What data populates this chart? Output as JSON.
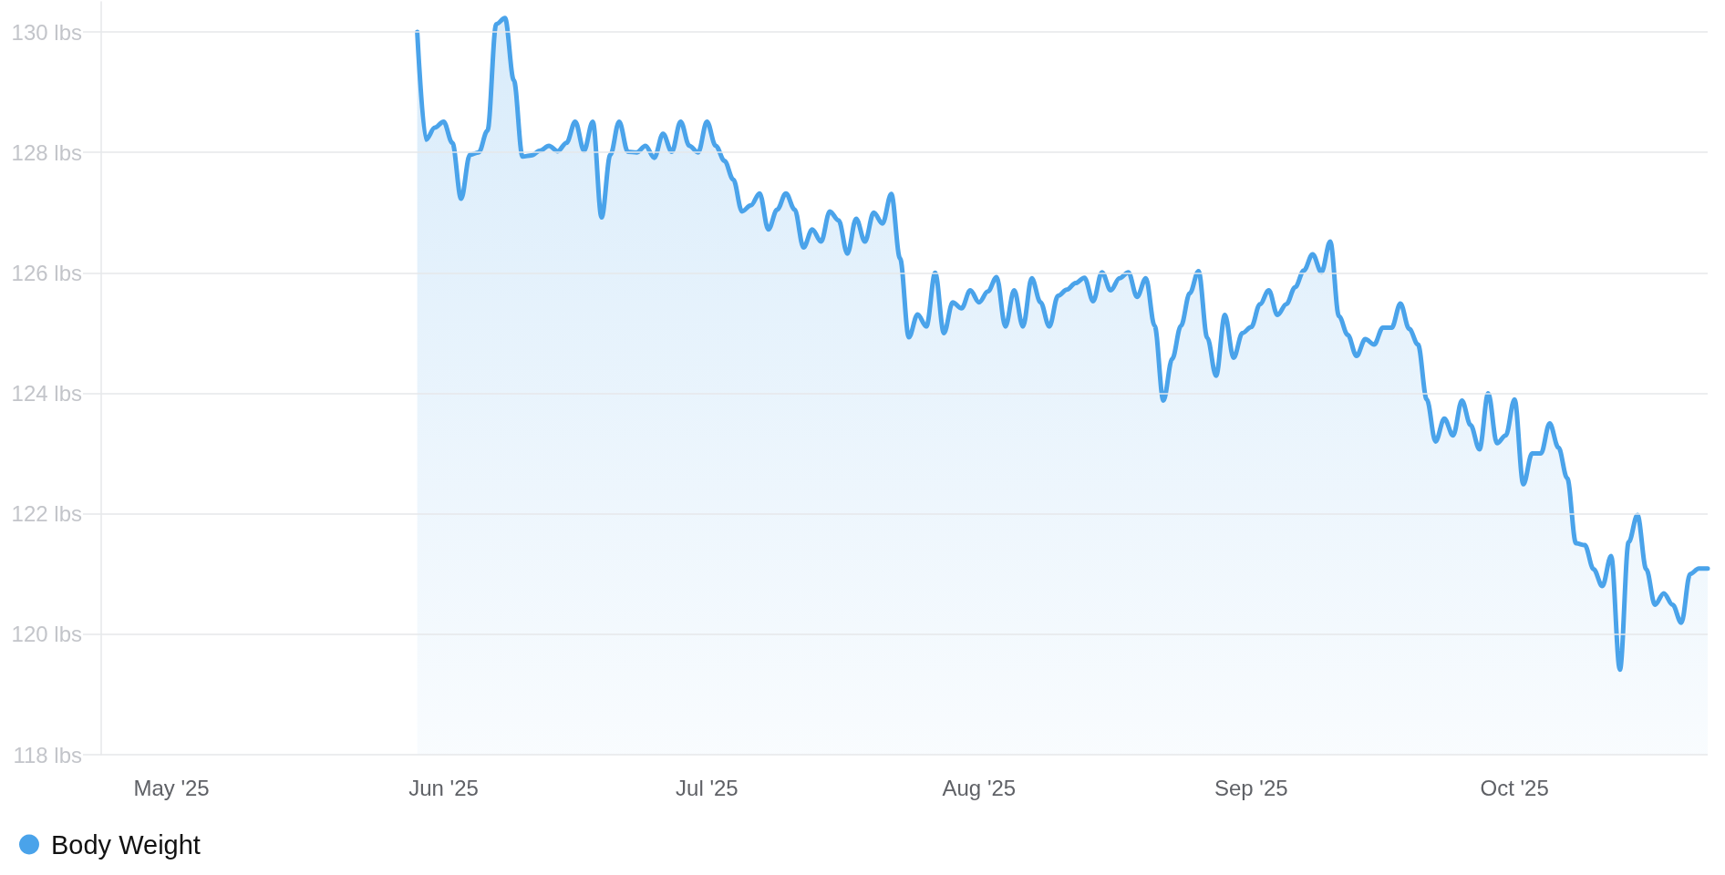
{
  "chart_data": {
    "type": "area",
    "x": [
      "2025-05-29",
      "2025-05-30",
      "2025-05-31",
      "2025-06-01",
      "2025-06-02",
      "2025-06-03",
      "2025-06-04",
      "2025-06-05",
      "2025-06-06",
      "2025-06-07",
      "2025-06-08",
      "2025-06-09",
      "2025-06-10",
      "2025-06-11",
      "2025-06-12",
      "2025-06-13",
      "2025-06-14",
      "2025-06-15",
      "2025-06-16",
      "2025-06-17",
      "2025-06-18",
      "2025-06-19",
      "2025-06-20",
      "2025-06-21",
      "2025-06-22",
      "2025-06-23",
      "2025-06-24",
      "2025-06-25",
      "2025-06-26",
      "2025-06-27",
      "2025-06-28",
      "2025-06-29",
      "2025-06-30",
      "2025-07-01",
      "2025-07-02",
      "2025-07-03",
      "2025-07-04",
      "2025-07-05",
      "2025-07-06",
      "2025-07-07",
      "2025-07-08",
      "2025-07-09",
      "2025-07-10",
      "2025-07-11",
      "2025-07-12",
      "2025-07-13",
      "2025-07-14",
      "2025-07-15",
      "2025-07-16",
      "2025-07-17",
      "2025-07-18",
      "2025-07-19",
      "2025-07-20",
      "2025-07-21",
      "2025-07-22",
      "2025-07-23",
      "2025-07-24",
      "2025-07-25",
      "2025-07-26",
      "2025-07-27",
      "2025-07-28",
      "2025-07-29",
      "2025-07-30",
      "2025-07-31",
      "2025-08-01",
      "2025-08-02",
      "2025-08-03",
      "2025-08-04",
      "2025-08-05",
      "2025-08-06",
      "2025-08-07",
      "2025-08-08",
      "2025-08-09",
      "2025-08-10",
      "2025-08-11",
      "2025-08-12",
      "2025-08-13",
      "2025-08-14",
      "2025-08-15",
      "2025-08-16",
      "2025-08-17",
      "2025-08-18",
      "2025-08-19",
      "2025-08-20",
      "2025-08-21",
      "2025-08-22",
      "2025-08-23",
      "2025-08-24",
      "2025-08-25",
      "2025-08-26",
      "2025-08-27",
      "2025-08-28",
      "2025-08-29",
      "2025-08-30",
      "2025-08-31",
      "2025-09-01",
      "2025-09-02",
      "2025-09-03",
      "2025-09-04",
      "2025-09-05",
      "2025-09-06",
      "2025-09-07",
      "2025-09-08",
      "2025-09-09",
      "2025-09-10",
      "2025-09-11",
      "2025-09-12",
      "2025-09-13",
      "2025-09-14",
      "2025-09-15",
      "2025-09-16",
      "2025-09-17",
      "2025-09-18",
      "2025-09-19",
      "2025-09-20",
      "2025-09-21",
      "2025-09-22",
      "2025-09-23",
      "2025-09-24",
      "2025-09-25",
      "2025-09-26",
      "2025-09-27",
      "2025-09-28",
      "2025-09-29",
      "2025-09-30",
      "2025-10-01",
      "2025-10-02",
      "2025-10-03",
      "2025-10-04",
      "2025-10-05",
      "2025-10-06",
      "2025-10-07",
      "2025-10-08",
      "2025-10-09",
      "2025-10-10",
      "2025-10-11",
      "2025-10-12",
      "2025-10-13",
      "2025-10-14",
      "2025-10-15",
      "2025-10-16",
      "2025-10-17",
      "2025-10-18",
      "2025-10-19",
      "2025-10-20",
      "2025-10-21",
      "2025-10-22",
      "2025-10-23"
    ],
    "series": [
      {
        "name": "Body Weight",
        "color": "#4aa3ea",
        "values": [
          130.0,
          128.21,
          128.41,
          128.51,
          128.16,
          127.23,
          127.96,
          128.0,
          128.36,
          130.13,
          130.23,
          129.2,
          127.93,
          127.95,
          128.03,
          128.11,
          128.02,
          128.16,
          128.51,
          128.03,
          128.51,
          126.92,
          127.96,
          128.51,
          128.01,
          128.0,
          128.11,
          127.91,
          128.31,
          128.01,
          128.51,
          128.11,
          128.0,
          128.51,
          128.11,
          127.86,
          127.55,
          127.02,
          127.12,
          127.32,
          126.72,
          127.05,
          127.32,
          127.05,
          126.42,
          126.72,
          126.52,
          127.02,
          126.87,
          126.32,
          126.9,
          126.52,
          127.0,
          126.82,
          127.31,
          126.24,
          124.93,
          125.31,
          125.11,
          126.0,
          125.0,
          125.51,
          125.41,
          125.71,
          125.51,
          125.69,
          125.93,
          125.11,
          125.71,
          125.11,
          125.91,
          125.51,
          125.11,
          125.62,
          125.72,
          125.83,
          125.92,
          125.53,
          126.01,
          125.71,
          125.91,
          126.01,
          125.6,
          125.91,
          125.12,
          123.88,
          124.57,
          125.12,
          125.66,
          126.03,
          124.92,
          124.29,
          125.3,
          124.59,
          125.0,
          125.1,
          125.48,
          125.71,
          125.3,
          125.48,
          125.76,
          126.04,
          126.31,
          126.01,
          126.52,
          125.28,
          124.97,
          124.62,
          124.9,
          124.81,
          125.09,
          125.09,
          125.49,
          125.07,
          124.81,
          123.9,
          123.2,
          123.58,
          123.3,
          123.88,
          123.47,
          123.07,
          124.0,
          123.17,
          123.3,
          123.9,
          122.49,
          123.0,
          123.0,
          123.5,
          123.1,
          122.59,
          121.51,
          121.48,
          121.08,
          120.8,
          121.3,
          119.41,
          121.53,
          121.98,
          121.08,
          120.49,
          120.68,
          120.49,
          120.19,
          121.0,
          121.09,
          121.09
        ]
      }
    ],
    "xlim": [
      "2025-04-23",
      "2025-10-23"
    ],
    "xticks": [
      {
        "value": "2025-05-01",
        "label": "May '25"
      },
      {
        "value": "2025-06-01",
        "label": "Jun '25"
      },
      {
        "value": "2025-07-01",
        "label": "Jul '25"
      },
      {
        "value": "2025-08-01",
        "label": "Aug '25"
      },
      {
        "value": "2025-09-01",
        "label": "Sep '25"
      },
      {
        "value": "2025-10-01",
        "label": "Oct '25"
      }
    ],
    "ylim": [
      118,
      130.5
    ],
    "yticks": [
      {
        "value": 118,
        "label": "118 lbs"
      },
      {
        "value": 120,
        "label": "120 lbs"
      },
      {
        "value": 122,
        "label": "122 lbs"
      },
      {
        "value": 124,
        "label": "124 lbs"
      },
      {
        "value": 126,
        "label": "126 lbs"
      },
      {
        "value": 128,
        "label": "128 lbs"
      },
      {
        "value": 130,
        "label": "130 lbs"
      }
    ],
    "grid": "y",
    "legend": "bottom left"
  }
}
